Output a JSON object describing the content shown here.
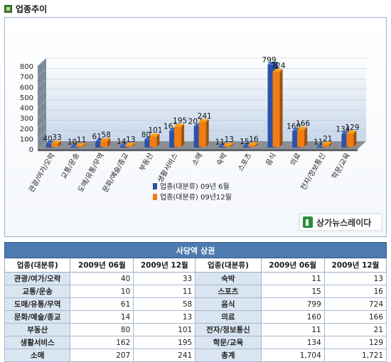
{
  "page": {
    "title": "업종추이"
  },
  "watermark": "상가뉴스레이다",
  "chart_data": {
    "type": "bar",
    "categories": [
      "관광/여가/오락",
      "교통/운송",
      "도매/유통/무역",
      "문화/예술/종교",
      "부동산",
      "생활서비스",
      "소매",
      "숙박",
      "스포츠",
      "음식",
      "의료",
      "전자/정보통신",
      "학문/교육"
    ],
    "series": [
      {
        "name": "업종(대분류) 09년 6월",
        "values": [
          40,
          10,
          61,
          14,
          80,
          162,
          207,
          11,
          15,
          799,
          160,
          11,
          134
        ],
        "color": "#2c52a8"
      },
      {
        "name": "업종(대분류) 09년12월",
        "values": [
          33,
          11,
          58,
          13,
          101,
          195,
          241,
          13,
          16,
          724,
          166,
          21,
          129
        ],
        "color": "#f07d12"
      }
    ],
    "ylim": [
      0,
      800
    ],
    "yticks": [
      0,
      100,
      200,
      300,
      400,
      500,
      600,
      700,
      800
    ],
    "legend_position": "right",
    "grid": true
  },
  "table": {
    "caption": "사당역 상권",
    "headers": [
      "업종(대분류)",
      "2009년 06월",
      "2009년 12월"
    ],
    "left_rows": [
      [
        "관광/여가/오락",
        "40",
        "33"
      ],
      [
        "교통/운송",
        "10",
        "11"
      ],
      [
        "도매/유통/무역",
        "61",
        "58"
      ],
      [
        "문화/예술/종교",
        "14",
        "13"
      ],
      [
        "부동산",
        "80",
        "101"
      ],
      [
        "생활서비스",
        "162",
        "195"
      ],
      [
        "소매",
        "207",
        "241"
      ]
    ],
    "right_rows": [
      [
        "숙박",
        "11",
        "13"
      ],
      [
        "스포츠",
        "15",
        "16"
      ],
      [
        "음식",
        "799",
        "724"
      ],
      [
        "의료",
        "160",
        "166"
      ],
      [
        "전자/정보통신",
        "11",
        "21"
      ],
      [
        "학문/교육",
        "134",
        "129"
      ],
      [
        "총계",
        "1,704",
        "1,721"
      ]
    ]
  }
}
